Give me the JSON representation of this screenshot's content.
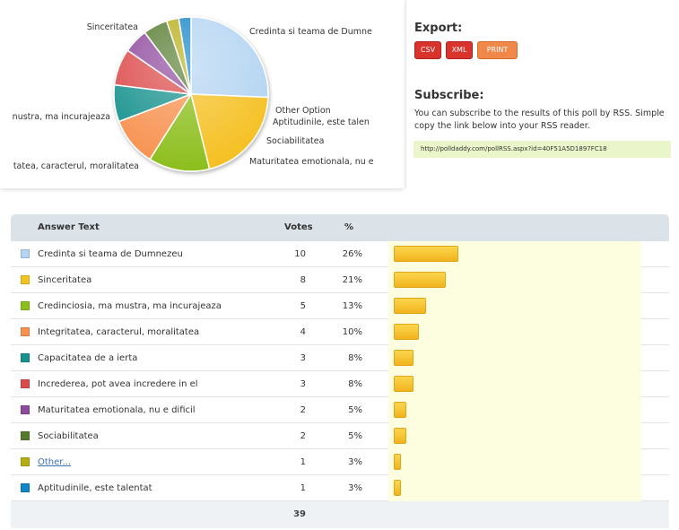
{
  "export": {
    "heading": "Export:",
    "buttons": [
      "CSV",
      "XML",
      "PRINT"
    ]
  },
  "subscribe": {
    "heading": "Subscribe:",
    "text": "You can subscribe to the results of this poll by RSS. Simple copy the link below into your RSS reader.",
    "link": "http://polldaddy.com/pollRSS.aspx?id=40F51A5D1897FC18"
  },
  "pie_labels": {
    "credinta": "Credinta si teama de Dumne",
    "sinceritatea": "Sinceritatea",
    "credinciosia": "nustra, ma incurajeaza",
    "integritatea": "tatea, caracterul, moralitatea",
    "other": "Other Option",
    "aptitudinile": "Aptitudinile, este talen",
    "sociabilitatea": "Sociabilitatea",
    "maturitatea": "Maturitatea emotionala, nu e"
  },
  "table": {
    "headers": {
      "answer": "Answer Text",
      "votes": "Votes",
      "pct": "%"
    },
    "total": "39"
  },
  "chart_data": {
    "type": "pie",
    "total_votes": 39,
    "series": [
      {
        "name": "Credinta si teama de Dumnezeu",
        "votes": 10,
        "percent": "26%",
        "color": "#b3d4f2",
        "link": false
      },
      {
        "name": "Sinceritatea",
        "votes": 8,
        "percent": "21%",
        "color": "#f5c022",
        "link": false
      },
      {
        "name": "Credinciosia, ma mustra, ma incurajeaza",
        "votes": 5,
        "percent": "13%",
        "color": "#8cbe1c",
        "link": false
      },
      {
        "name": "Integritatea, caracterul, moralitatea",
        "votes": 4,
        "percent": "10%",
        "color": "#f79150",
        "link": false
      },
      {
        "name": "Capacitatea de a ierta",
        "votes": 3,
        "percent": "8%",
        "color": "#17918d",
        "link": false
      },
      {
        "name": "Increderea, pot avea incredere in el",
        "votes": 3,
        "percent": "8%",
        "color": "#dc4a4a",
        "link": false
      },
      {
        "name": "Maturitatea emotionala, nu e dificil",
        "votes": 2,
        "percent": "5%",
        "color": "#8e4a9c",
        "link": false
      },
      {
        "name": "Sociabilitatea",
        "votes": 2,
        "percent": "5%",
        "color": "#557a2e",
        "link": false
      },
      {
        "name": "Other...",
        "votes": 1,
        "percent": "3%",
        "color": "#b6ad12",
        "link": true
      },
      {
        "name": "Aptitudinile, este talentat",
        "votes": 1,
        "percent": "3%",
        "color": "#1285c7",
        "link": false
      }
    ]
  }
}
